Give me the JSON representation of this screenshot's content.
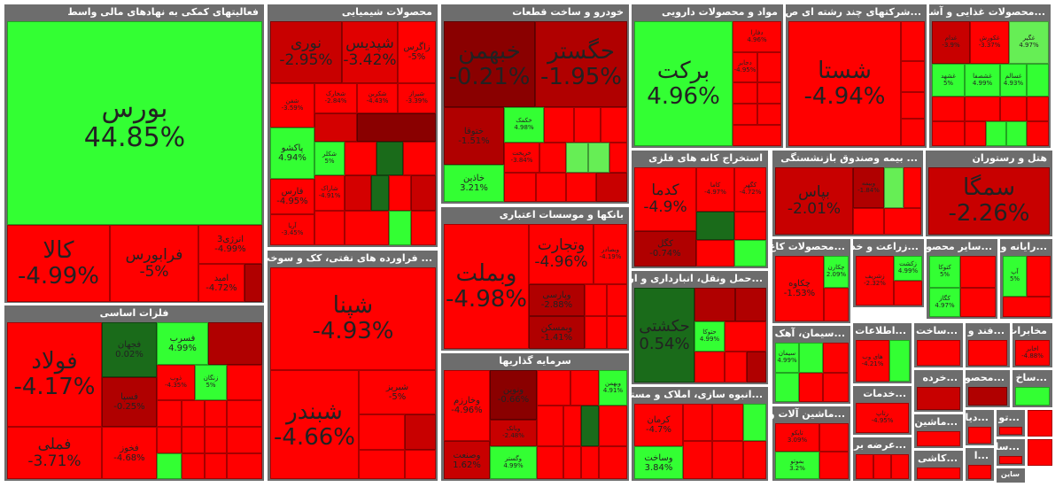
{
  "sectors": [
    {
      "title": "فعالیتهای کمکی به نهادهای مالی واسط",
      "tiles": [
        {
          "name": "بورس",
          "pct": "44.85%"
        },
        {
          "name": "کالا",
          "pct": "-4.99%"
        },
        {
          "name": "فرابورس",
          "pct": "-5%"
        },
        {
          "name": "انرژی3",
          "pct": "-4.99%"
        },
        {
          "name": "امید",
          "pct": "-4.72%"
        }
      ]
    },
    {
      "title": "محصولات شیمیایی",
      "tiles": [
        {
          "name": "زاگرس",
          "pct": "-5%"
        },
        {
          "name": "شپدیس",
          "pct": "-3.42%"
        },
        {
          "name": "نوری",
          "pct": "-2.95%"
        },
        {
          "name": "شیراز",
          "pct": "-3.39%"
        },
        {
          "name": "شکربن",
          "pct": "-4.43%"
        },
        {
          "name": "شخارک",
          "pct": "-2.84%"
        },
        {
          "name": "شفن",
          "pct": "-3.59%"
        },
        {
          "name": "پاکشو",
          "pct": "4.94%"
        },
        {
          "name": "شکلر",
          "pct": "5%"
        },
        {
          "name": "فارس",
          "pct": "-4.95%"
        },
        {
          "name": "آریا",
          "pct": "-3.45%"
        },
        {
          "name": "شاراک",
          "pct": "-4.91%"
        }
      ]
    },
    {
      "title": "خودرو و ساخت قطعات",
      "tiles": [
        {
          "name": "حگستر",
          "pct": "-1.95%"
        },
        {
          "name": "خبهمن",
          "pct": "-0.21%"
        },
        {
          "name": "ختوقا",
          "pct": "-1.51%"
        },
        {
          "name": "خکمک",
          "pct": "4.98%"
        },
        {
          "name": "خریخت",
          "pct": "-3.84%"
        },
        {
          "name": "خاذین",
          "pct": "3.21%"
        }
      ]
    },
    {
      "title": "مواد و محصولات دارویی",
      "tiles": [
        {
          "name": "برکت",
          "pct": "4.96%"
        },
        {
          "name": "دفارا",
          "pct": "4.96%"
        },
        {
          "name": "دجابر",
          "pct": "-4.95%"
        }
      ]
    },
    {
      "title": "...شرکتهای چند رشته ای ص",
      "tiles": [
        {
          "name": "شستا",
          "pct": "-4.94%"
        }
      ]
    },
    {
      "title": "...محصولات غذایی و آشا",
      "tiles": [
        {
          "name": "غکورش",
          "pct": "-3.37%"
        },
        {
          "name": "غدام",
          "pct": "-3.9%"
        },
        {
          "name": "غگیر",
          "pct": "4.97%"
        },
        {
          "name": "غشهد",
          "pct": "5%"
        },
        {
          "name": "غشصفا",
          "pct": "4.99%"
        },
        {
          "name": "غسالم",
          "pct": "4.93%"
        }
      ]
    },
    {
      "title": "استخراج کانه های فلزی",
      "tiles": [
        {
          "name": "کدما",
          "pct": "-4.9%"
        },
        {
          "name": "کاما",
          "pct": "-4.97%"
        },
        {
          "name": "کگهر",
          "pct": "-4.72%"
        },
        {
          "name": "کگل",
          "pct": "-0.74%"
        }
      ]
    },
    {
      "title": "... بیمه وصندوق بازنشستگی",
      "tiles": [
        {
          "name": "بپاس",
          "pct": "-2.01%"
        },
        {
          "name": "وبیمه",
          "pct": "-1.84%"
        }
      ]
    },
    {
      "title": "هتل و رستوران",
      "tiles": [
        {
          "name": "سمگا",
          "pct": "-2.26%"
        }
      ]
    },
    {
      "title": "فلزات اساسی",
      "tiles": [
        {
          "name": "فولاد",
          "pct": "-4.17%"
        },
        {
          "name": "فملی",
          "pct": "-3.71%"
        },
        {
          "name": "فجهان",
          "pct": "0.02%"
        },
        {
          "name": "فسرب",
          "pct": "4.99%"
        },
        {
          "name": "فسپا",
          "pct": "-0.25%"
        },
        {
          "name": "فخوز",
          "pct": "-4.68%"
        },
        {
          "name": "ذوب",
          "pct": "-4.35%"
        },
        {
          "name": "زنگان",
          "pct": "5%"
        }
      ]
    },
    {
      "title": "... فراورده های نفتی، کک و سوخت",
      "tiles": [
        {
          "name": "شپنا",
          "pct": "-4.93%"
        },
        {
          "name": "شبندر",
          "pct": "-4.66%"
        },
        {
          "name": "شبریز",
          "pct": "-5%"
        }
      ]
    },
    {
      "title": "بانکها و موسسات اعتباری",
      "tiles": [
        {
          "name": "وبملت",
          "pct": "-4.98%"
        },
        {
          "name": "وتجارت",
          "pct": "-4.96%"
        },
        {
          "name": "وبصادر",
          "pct": "-4.19%"
        },
        {
          "name": "وپارسی",
          "pct": "-2.88%"
        },
        {
          "name": "وبمسکن",
          "pct": "-1.41%"
        }
      ]
    },
    {
      "title": "سرمایه گذاریها",
      "tiles": [
        {
          "name": "وخارزم",
          "pct": "-4.96%"
        },
        {
          "name": "ونوین",
          "pct": "-0.66%"
        },
        {
          "name": "وصنعت",
          "pct": "1.62%"
        },
        {
          "name": "وبانک",
          "pct": "-2.48%"
        },
        {
          "name": "وبهمن",
          "pct": "4.91%"
        },
        {
          "name": "وگستر",
          "pct": "4.99%"
        }
      ]
    },
    {
      "title": "...حمل ونقل، انبارداری و ارتبا",
      "tiles": [
        {
          "name": "حکشتی",
          "pct": "0.54%"
        },
        {
          "name": "حتوکا",
          "pct": "4.99%"
        }
      ]
    },
    {
      "title": "...انبوه سازی، املاک و مستغ",
      "tiles": [
        {
          "name": "کرمان",
          "pct": "-4.7%"
        },
        {
          "name": "وساخت",
          "pct": "3.84%"
        }
      ]
    },
    {
      "title": "...محصولات کاغ",
      "tiles": [
        {
          "name": "چکاوه",
          "pct": "-1.53%"
        },
        {
          "name": "چکارن",
          "pct": "2.09%"
        }
      ]
    },
    {
      "title": "...زراعت و خد",
      "tiles": [
        {
          "name": "زشریف",
          "pct": "-2.32%"
        },
        {
          "name": "زکشت",
          "pct": "4.99%"
        }
      ]
    },
    {
      "title": "...سایر محصو",
      "tiles": [
        {
          "name": "کتوکا",
          "pct": "5%"
        },
        {
          "name": "کگاز",
          "pct": "4.97%"
        }
      ]
    },
    {
      "title": "...رایانه و",
      "tiles": [
        {
          "name": "آپ",
          "pct": "5%"
        }
      ]
    },
    {
      "title": "...سیمان، آهک",
      "tiles": [
        {
          "name": "سیمان",
          "pct": "4.99%"
        }
      ]
    },
    {
      "title": "...اطلاعات",
      "tiles": [
        {
          "name": "های وب",
          "pct": "-4.21%"
        }
      ]
    },
    {
      "title": "...ساخت",
      "tiles": []
    },
    {
      "title": "...فند و",
      "tiles": []
    },
    {
      "title": "مخابرات",
      "tiles": [
        {
          "name": "اخابر",
          "pct": "-4.88%"
        }
      ]
    },
    {
      "title": "...خدمات",
      "tiles": [
        {
          "name": "رتاپ",
          "pct": "-4.95%"
        }
      ]
    },
    {
      "title": "...خرده",
      "tiles": []
    },
    {
      "title": "...محصو",
      "tiles": []
    },
    {
      "title": "...ساخ",
      "tiles": []
    },
    {
      "title": "...ماشین آلات و",
      "tiles": [
        {
          "name": "بموتو",
          "pct": "3.2%"
        },
        {
          "name": "تایکو",
          "pct": "3.09%"
        }
      ]
    },
    {
      "title": "...ماشین",
      "tiles": []
    },
    {
      "title": "...دیا",
      "tiles": []
    },
    {
      "title": "...تو",
      "tiles": []
    },
    {
      "title": "...عرضه بر",
      "tiles": []
    },
    {
      "title": "...کاشی",
      "tiles": []
    },
    {
      "title": "...ا",
      "tiles": []
    },
    {
      "title": "...سا",
      "tiles": []
    },
    {
      "title": "ساین",
      "tiles": []
    }
  ]
}
